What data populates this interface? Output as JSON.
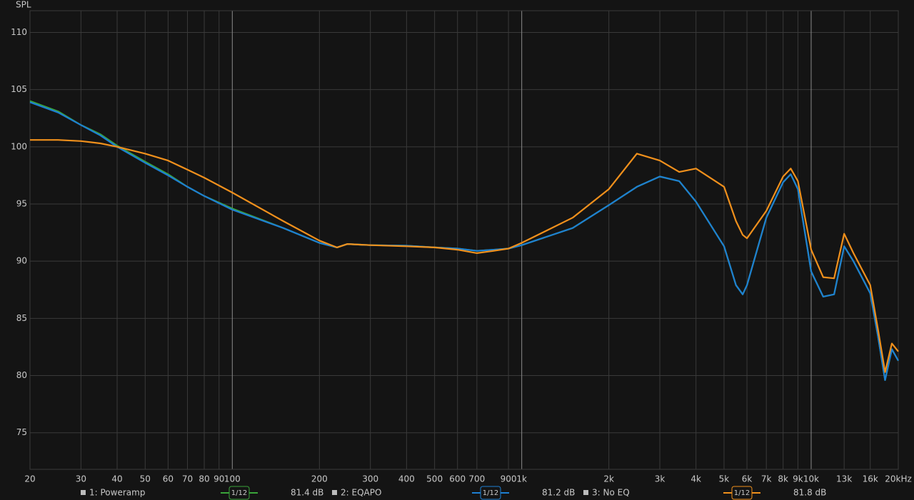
{
  "chart_data": {
    "type": "line",
    "y_label": "SPL",
    "log_x": true,
    "grid": true,
    "xlim": [
      20,
      20000
    ],
    "ylim": [
      71.8,
      111.9
    ],
    "yticks": [
      75,
      80,
      85,
      90,
      95,
      100,
      105,
      110
    ],
    "xticks": [
      20,
      30,
      40,
      50,
      60,
      70,
      80,
      90,
      100,
      200,
      300,
      400,
      500,
      600,
      700,
      900,
      {
        "value": 1000,
        "label": "1k"
      },
      {
        "value": 2000,
        "label": "2k"
      },
      {
        "value": 3000,
        "label": "3k"
      },
      {
        "value": 4000,
        "label": "4k"
      },
      {
        "value": 5000,
        "label": "5k"
      },
      {
        "value": 6000,
        "label": "6k"
      },
      {
        "value": 7000,
        "label": "7k"
      },
      {
        "value": 8000,
        "label": "8k"
      },
      {
        "value": 9000,
        "label": "9k"
      },
      {
        "value": 10000,
        "label": "10k"
      },
      {
        "value": 13000,
        "label": "13k"
      },
      {
        "value": 16000,
        "label": "16k"
      },
      {
        "value": 20000,
        "label": "20kHz"
      }
    ],
    "x": [
      20,
      25,
      30,
      35,
      40,
      50,
      60,
      70,
      80,
      100,
      150,
      200,
      230,
      250,
      300,
      400,
      500,
      600,
      700,
      800,
      900,
      1000,
      1500,
      2000,
      2500,
      3000,
      3500,
      4000,
      5000,
      5500,
      5800,
      6000,
      7000,
      8000,
      8500,
      9000,
      10000,
      11000,
      12000,
      13000,
      14000,
      16000,
      17000,
      18000,
      19000,
      20000
    ],
    "series": [
      {
        "name": "1: Poweramp",
        "color": "#3aa53a",
        "smoothing": "1/12",
        "level": "81.4 dB",
        "values": [
          104.0,
          103.1,
          101.9,
          101.1,
          100.1,
          98.7,
          97.6,
          96.5,
          95.7,
          94.6,
          92.9,
          91.6,
          91.2,
          91.5,
          91.4,
          91.35,
          91.2,
          91.1,
          90.9,
          91.0,
          91.1,
          91.4,
          92.9,
          94.9,
          96.5,
          97.4,
          97.0,
          95.2,
          91.3,
          87.9,
          87.1,
          87.9,
          93.8,
          96.9,
          97.6,
          96.3,
          89.1,
          86.9,
          87.1,
          91.3,
          90.0,
          87.2,
          83.5,
          79.6,
          82.3,
          81.3
        ]
      },
      {
        "name": "2: EQAPO",
        "color": "#1e7fd2",
        "smoothing": "1/12",
        "level": "81.2 dB",
        "values": [
          103.9,
          103.0,
          101.9,
          101.0,
          100.0,
          98.6,
          97.5,
          96.5,
          95.7,
          94.5,
          92.9,
          91.6,
          91.2,
          91.5,
          91.4,
          91.35,
          91.2,
          91.1,
          90.9,
          91.0,
          91.1,
          91.4,
          92.9,
          94.9,
          96.5,
          97.4,
          97.0,
          95.2,
          91.3,
          87.9,
          87.1,
          87.9,
          93.8,
          96.9,
          97.6,
          96.3,
          89.1,
          86.9,
          87.1,
          91.3,
          90.0,
          87.2,
          83.5,
          79.6,
          82.3,
          81.3
        ]
      },
      {
        "name": "3: No EQ",
        "color": "#f0901c",
        "smoothing": "1/12",
        "level": "81.8 dB",
        "values": [
          100.6,
          100.6,
          100.5,
          100.3,
          100.0,
          99.4,
          98.8,
          98.0,
          97.3,
          96.0,
          93.5,
          91.8,
          91.2,
          91.5,
          91.4,
          91.3,
          91.2,
          91.0,
          90.7,
          90.9,
          91.1,
          91.6,
          93.8,
          96.3,
          99.4,
          98.8,
          97.8,
          98.1,
          96.5,
          93.5,
          92.3,
          92.0,
          94.4,
          97.4,
          98.1,
          97.0,
          91.0,
          88.6,
          88.5,
          92.4,
          90.7,
          87.9,
          84.1,
          80.3,
          82.8,
          82.1
        ]
      }
    ]
  }
}
